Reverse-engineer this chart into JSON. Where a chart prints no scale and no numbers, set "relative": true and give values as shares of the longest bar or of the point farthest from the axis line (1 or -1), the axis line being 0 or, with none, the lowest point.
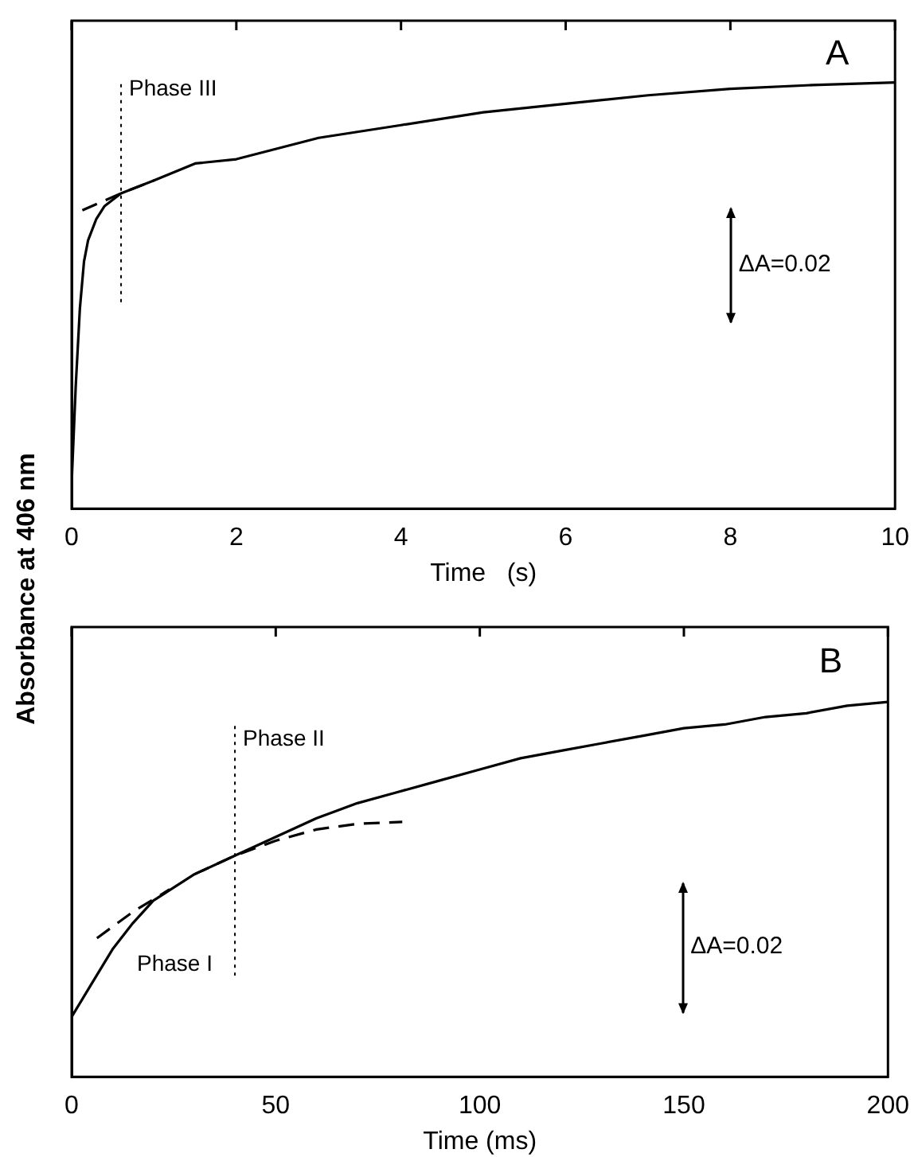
{
  "chart_data": [
    {
      "type": "line",
      "xlabel": "Time   (s)",
      "ylabel": "Absorbance at 406 nm",
      "relative": true,
      "xlim": [
        0,
        10
      ],
      "xticks": [
        0,
        2,
        4,
        6,
        8,
        10
      ],
      "grid": false,
      "legend": false,
      "marker": "none",
      "annotations": [
        "A",
        "ΔA=0.02"
      ],
      "ref_lines": [
        {
          "axis": "x",
          "value": 0.6,
          "label": "Phase III",
          "line_style": "dotted",
          "color": "#000000"
        }
      ],
      "series": [
        {
          "color": "#000000",
          "line_style": "solid",
          "x": [
            0,
            0.05,
            0.1,
            0.15,
            0.2,
            0.3,
            0.4,
            0.6,
            1,
            1.5,
            2,
            3,
            4,
            5,
            6,
            7,
            8,
            9,
            10
          ],
          "values": [
            0.06,
            0.29,
            0.47,
            0.58,
            0.63,
            0.68,
            0.71,
            0.74,
            0.77,
            0.81,
            0.82,
            0.87,
            0.9,
            0.93,
            0.95,
            0.97,
            0.985,
            0.994,
            1
          ]
        },
        {
          "color": "#000000",
          "line_style": "dashed",
          "x": [
            0.13,
            0.6,
            1
          ],
          "values": [
            0.7,
            0.74,
            0.77
          ]
        }
      ]
    },
    {
      "type": "line",
      "xlabel": "Time (ms)",
      "relative": true,
      "xlim": [
        0,
        200
      ],
      "xticks": [
        0,
        50,
        100,
        150,
        200
      ],
      "grid": false,
      "legend": false,
      "marker": "none",
      "annotations": [
        "B",
        "Phase I",
        "ΔA=0.02"
      ],
      "ref_lines": [
        {
          "axis": "x",
          "value": 40,
          "label": "Phase II",
          "line_style": "dotted",
          "color": "#000000"
        }
      ],
      "series": [
        {
          "color": "#000000",
          "line_style": "solid",
          "x": [
            0,
            5,
            10,
            15,
            20,
            30,
            40,
            50,
            60,
            70,
            80,
            90,
            100,
            110,
            120,
            130,
            140,
            150,
            160,
            170,
            180,
            190,
            200
          ],
          "values": [
            0.16,
            0.25,
            0.34,
            0.41,
            0.47,
            0.54,
            0.59,
            0.64,
            0.69,
            0.73,
            0.76,
            0.79,
            0.82,
            0.85,
            0.87,
            0.89,
            0.91,
            0.93,
            0.94,
            0.96,
            0.97,
            0.99,
            1
          ]
        },
        {
          "color": "#000000",
          "line_style": "dashed",
          "x": [
            6.2,
            15,
            24
          ],
          "values": [
            0.37,
            0.44,
            0.5
          ]
        },
        {
          "color": "#000000",
          "line_style": "dashed",
          "x": [
            30,
            40,
            50,
            60,
            70,
            81
          ],
          "values": [
            0.54,
            0.59,
            0.63,
            0.66,
            0.675,
            0.68
          ]
        }
      ]
    }
  ]
}
